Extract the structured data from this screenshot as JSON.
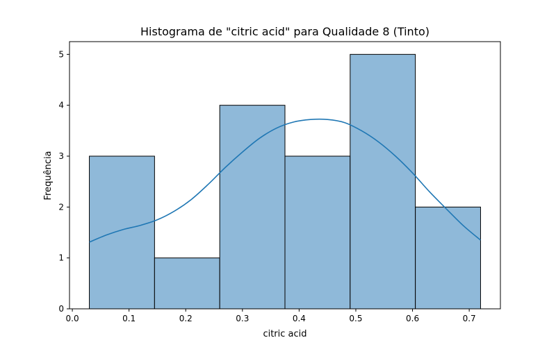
{
  "chart_data": {
    "type": "bar",
    "title": "Histograma de \"citric acid\" para Qualidade 8 (Tinto)",
    "xlabel": "citric acid",
    "ylabel": "Frequência",
    "xlim": [
      -0.005,
      0.755
    ],
    "ylim": [
      0,
      5.25
    ],
    "x_ticks": [
      0.0,
      0.1,
      0.2,
      0.3,
      0.4,
      0.5,
      0.6,
      0.7
    ],
    "x_tick_labels": [
      "0.0",
      "0.1",
      "0.2",
      "0.3",
      "0.4",
      "0.5",
      "0.6",
      "0.7"
    ],
    "y_ticks": [
      0,
      1,
      2,
      3,
      4,
      5
    ],
    "y_tick_labels": [
      "0",
      "1",
      "2",
      "3",
      "4",
      "5"
    ],
    "grid": false,
    "bins": [
      {
        "start": 0.03,
        "end": 0.145,
        "count": 3
      },
      {
        "start": 0.145,
        "end": 0.26,
        "count": 1
      },
      {
        "start": 0.26,
        "end": 0.375,
        "count": 4
      },
      {
        "start": 0.375,
        "end": 0.49,
        "count": 3
      },
      {
        "start": 0.49,
        "end": 0.605,
        "count": 5
      },
      {
        "start": 0.605,
        "end": 0.72,
        "count": 2
      }
    ],
    "kde": {
      "x": [
        0.03,
        0.06,
        0.09,
        0.12,
        0.15,
        0.18,
        0.21,
        0.24,
        0.27,
        0.3,
        0.33,
        0.36,
        0.39,
        0.42,
        0.45,
        0.48,
        0.51,
        0.54,
        0.57,
        0.6,
        0.63,
        0.66,
        0.69,
        0.72
      ],
      "y": [
        1.31,
        1.45,
        1.56,
        1.64,
        1.75,
        1.92,
        2.15,
        2.45,
        2.78,
        3.08,
        3.35,
        3.55,
        3.67,
        3.72,
        3.72,
        3.66,
        3.5,
        3.28,
        3.0,
        2.67,
        2.3,
        1.96,
        1.63,
        1.35
      ]
    },
    "colors": {
      "bar_fill": "#8fb9d9",
      "bar_edge": "#000000",
      "kde_line": "#1f77b4"
    }
  }
}
